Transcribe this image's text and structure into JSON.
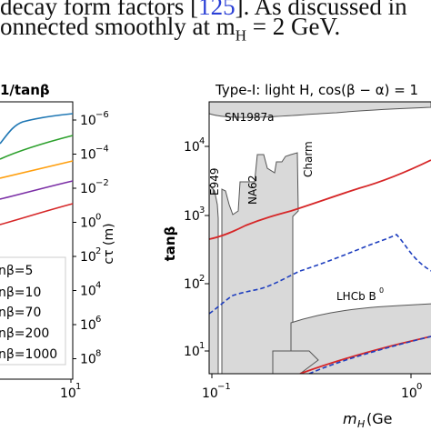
{
  "text_block": {
    "line1_prefix": "decay form factors [",
    "line1_citation": "125",
    "line1_suffix": "]. As discussed in",
    "line2": "onnected smoothly at m",
    "line2_sub": "H",
    "line2_tail": " = 2 GeV."
  },
  "left_panel": {
    "title": "1/tanβ",
    "y2_label": "cτ (m)",
    "y2_ticks": [
      {
        "base": "10",
        "exp": "−6"
      },
      {
        "base": "10",
        "exp": "−4"
      },
      {
        "base": "10",
        "exp": "−2"
      },
      {
        "base": "10",
        "exp": "0"
      },
      {
        "base": "10",
        "exp": "2"
      },
      {
        "base": "10",
        "exp": "4"
      },
      {
        "base": "10",
        "exp": "6"
      },
      {
        "base": "10",
        "exp": "8"
      }
    ],
    "x_ticks": [
      {
        "base": "10",
        "exp": "1"
      }
    ],
    "legend": [
      {
        "label": "nβ=5",
        "color": "#1f77b4"
      },
      {
        "label": "nβ=10",
        "color": "#2ca02c"
      },
      {
        "label": "nβ=70",
        "color": "#ff9f0e"
      },
      {
        "label": "nβ=200",
        "color": "#7b2fa6"
      },
      {
        "label": "nβ=1000",
        "color": "#d62728"
      }
    ]
  },
  "right_panel": {
    "title": "Type-I: light H, cos(β − α) = 1",
    "ylabel": "tanβ",
    "xlabel_main": "m",
    "xlabel_sub": "H",
    "xlabel_tail": " (Ge",
    "y_ticks": [
      {
        "base": "10",
        "exp": "4"
      },
      {
        "base": "10",
        "exp": "3"
      },
      {
        "base": "10",
        "exp": "2"
      },
      {
        "base": "10",
        "exp": "1"
      }
    ],
    "x_ticks": [
      {
        "base": "10",
        "exp": "−1"
      },
      {
        "base": "10",
        "exp": "0"
      }
    ],
    "region_labels": {
      "sn": "SN1987a",
      "e949": "E949",
      "na62": "NA62",
      "charm": "Charm",
      "lhcb": "LHCb B",
      "lhcb_sup": "0"
    }
  },
  "colors": {
    "excluded_fill": "#d9d9d9",
    "excluded_edge": "#555555",
    "red_curve": "#d62728",
    "blue_dashed": "#1f3fbf"
  },
  "chart_data": [
    {
      "type": "line",
      "title": "1/tanβ",
      "xlabel": "",
      "ylabel": "cτ (m)",
      "y_scale": "log",
      "series": [
        {
          "name": "nβ=5",
          "color": "#1f77b4",
          "x": [
            0.5,
            1,
            2,
            4,
            10
          ],
          "y": [
            1e-05,
            2e-06,
            1e-06,
            7e-07,
            4e-07
          ]
        },
        {
          "name": "nβ=10",
          "color": "#2ca02c",
          "x": [
            0.5,
            2,
            10
          ],
          "y": [
            0.0004,
            0.00015,
            6e-05
          ]
        },
        {
          "name": "nβ=70",
          "color": "#ff9f0e",
          "x": [
            0.5,
            2,
            10
          ],
          "y": [
            0.02,
            0.007,
            0.003
          ]
        },
        {
          "name": "nβ=200",
          "color": "#7b2fa6",
          "x": [
            0.5,
            2,
            10
          ],
          "y": [
            0.15,
            0.06,
            0.025
          ]
        },
        {
          "name": "nβ=1000",
          "color": "#d62728",
          "x": [
            0.5,
            2,
            10
          ],
          "y": [
            4,
            1.5,
            0.6
          ]
        }
      ]
    },
    {
      "type": "area",
      "title": "Type-I: light H, cos(β − α) = 1",
      "xlabel": "m_H (GeV)",
      "ylabel": "tanβ",
      "x_scale": "log",
      "y_scale": "log",
      "series": [
        {
          "label": "red",
          "color": "#d62728",
          "x": [
            0.1,
            0.15,
            0.25,
            0.4,
            0.6,
            1.0,
            1.4
          ],
          "y": [
            620,
            800,
            1200,
            1600,
            2200,
            3500,
            6000
          ]
        },
        {
          "label": "blue-dashed",
          "color": "#1f3fbf",
          "x": [
            0.1,
            0.13,
            0.2,
            0.3,
            0.5,
            0.7,
            1.0,
            1.4
          ],
          "y": [
            35,
            65,
            100,
            150,
            330,
            500,
            260,
            190
          ]
        }
      ]
    }
  ]
}
